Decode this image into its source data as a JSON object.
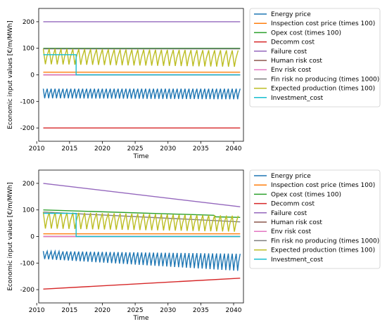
{
  "chart_data": [
    {
      "type": "line",
      "xlabel": "Time",
      "ylabel": "Economic input values [€/m/MWh]",
      "xlim": [
        2010.3,
        2041.5
      ],
      "ylim": [
        -250,
        250
      ],
      "xticks": [
        2010,
        2015,
        2020,
        2025,
        2030,
        2035,
        2040
      ],
      "yticks": [
        -200,
        -100,
        0,
        100,
        200
      ],
      "legend_position": "outside-right",
      "series": [
        {
          "name": "Energy price",
          "color": "#1f77b4",
          "kind": "oscillation",
          "x_range": [
            2011,
            2041
          ],
          "period": 0.6,
          "min_start": -88,
          "max_start": -52,
          "min_end": -92,
          "max_end": -52
        },
        {
          "name": "Inspection cost price (times 100)",
          "color": "#ff7f0e",
          "kind": "flat",
          "x_range": [
            2011,
            2041
          ],
          "y": 10
        },
        {
          "name": "Opex cost (times 100)",
          "color": "#2ca02c",
          "kind": "flat",
          "x_range": [
            2011,
            2041
          ],
          "y": 100
        },
        {
          "name": "Decomm cost",
          "color": "#d62728",
          "kind": "flat",
          "x_range": [
            2011,
            2041
          ],
          "y": -200
        },
        {
          "name": "Failure cost",
          "color": "#9467bd",
          "kind": "flat",
          "x_range": [
            2011,
            2041
          ],
          "y": 200
        },
        {
          "name": "Human risk cost",
          "color": "#8c564b",
          "kind": "flat",
          "x_range": [
            2011,
            2041
          ],
          "y": 0
        },
        {
          "name": "Env risk cost",
          "color": "#e377c2",
          "kind": "flat",
          "x_range": [
            2011,
            2041
          ],
          "y": 0
        },
        {
          "name": "Fin risk no producing (times 1000)",
          "color": "#7f7f7f",
          "kind": "flat",
          "x_range": [
            2011,
            2041
          ],
          "y": 98
        },
        {
          "name": "Expected production (times 100)",
          "color": "#bcbd22",
          "kind": "oscillation",
          "x_range": [
            2011,
            2041
          ],
          "period": 0.9,
          "min_start": 40,
          "max_start": 98,
          "min_end": 30,
          "max_end": 92
        },
        {
          "name": "Investment_cost",
          "color": "#17becf",
          "kind": "step",
          "x": [
            2011,
            2016,
            2016,
            2041
          ],
          "y": [
            76,
            76,
            0,
            0
          ]
        }
      ]
    },
    {
      "type": "line",
      "xlabel": "Time",
      "ylabel": "Economic input values [€/m/MWh]",
      "xlim": [
        2010.3,
        2041.5
      ],
      "ylim": [
        -250,
        250
      ],
      "xticks": [
        2010,
        2015,
        2020,
        2025,
        2030,
        2035,
        2040
      ],
      "yticks": [
        -200,
        -100,
        0,
        100,
        200
      ],
      "legend_position": "outside-right",
      "series": [
        {
          "name": "Energy price",
          "color": "#1f77b4",
          "kind": "oscillation",
          "x_range": [
            2011,
            2041
          ],
          "period": 0.6,
          "min_start": -85,
          "max_start": -55,
          "min_end": -130,
          "max_end": -65
        },
        {
          "name": "Inspection cost price (times 100)",
          "color": "#ff7f0e",
          "kind": "flat",
          "x_range": [
            2011,
            2041
          ],
          "y": 10
        },
        {
          "name": "Opex cost (times 100)",
          "color": "#2ca02c",
          "kind": "polyline",
          "x": [
            2011,
            2037,
            2037.3,
            2041
          ],
          "y": [
            100,
            80,
            74,
            72
          ]
        },
        {
          "name": "Decomm cost",
          "color": "#d62728",
          "kind": "polyline",
          "x": [
            2011,
            2041
          ],
          "y": [
            -198,
            -157
          ]
        },
        {
          "name": "Failure cost",
          "color": "#9467bd",
          "kind": "polyline",
          "x": [
            2011,
            2041
          ],
          "y": [
            200,
            112
          ]
        },
        {
          "name": "Human risk cost",
          "color": "#8c564b",
          "kind": "flat",
          "x_range": [
            2011,
            2041
          ],
          "y": 0
        },
        {
          "name": "Env risk cost",
          "color": "#e377c2",
          "kind": "flat",
          "x_range": [
            2011,
            2041
          ],
          "y": 0
        },
        {
          "name": "Fin risk no producing (times 1000)",
          "color": "#7f7f7f",
          "kind": "polyline",
          "x": [
            2011,
            2041
          ],
          "y": [
            92,
            55
          ]
        },
        {
          "name": "Expected production (times 100)",
          "color": "#bcbd22",
          "kind": "oscillation",
          "x_range": [
            2011,
            2041
          ],
          "period": 0.9,
          "min_start": 30,
          "max_start": 92,
          "min_end": 18,
          "max_end": 78
        },
        {
          "name": "Investment_cost",
          "color": "#17becf",
          "kind": "step",
          "x": [
            2011,
            2016,
            2016,
            2041
          ],
          "y": [
            87,
            87,
            0,
            0
          ]
        }
      ]
    }
  ]
}
